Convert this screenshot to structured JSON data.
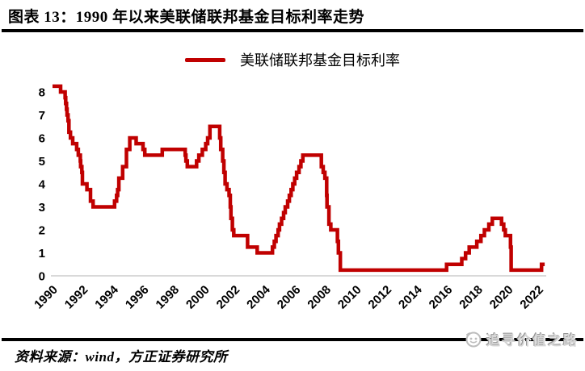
{
  "header": {
    "title": "图表 13：1990 年以来美联储联邦基金目标利率走势"
  },
  "legend": {
    "label": "美联储联邦基金目标利率"
  },
  "footer": {
    "source": "资料来源：wind，方正证券研究所",
    "watermark": "追寻价值之路"
  },
  "colors": {
    "series": "#C00000",
    "zero_line": "#D9D9D9",
    "rule": "#000000",
    "watermark_gray": "#BDBDBD"
  },
  "chart_data": {
    "type": "line",
    "title": "美联储联邦基金目标利率",
    "step": "after",
    "x_range": [
      1990,
      2023
    ],
    "ylim": [
      0,
      8.5
    ],
    "y_ticks": [
      0,
      1,
      2,
      3,
      4,
      5,
      6,
      7,
      8
    ],
    "x_tick_years": [
      1990,
      1992,
      1994,
      1996,
      1998,
      2000,
      2002,
      2004,
      2006,
      2008,
      2010,
      2012,
      2014,
      2016,
      2018,
      2020,
      2022
    ],
    "grid": "zero-baseline-only",
    "legend_position": "top-center",
    "series": [
      {
        "name": "美联储联邦基金目标利率",
        "color": "#C00000",
        "unit": "%",
        "x_end": 2022.42,
        "points": [
          [
            1990.0,
            8.25
          ],
          [
            1990.53,
            8.0
          ],
          [
            1990.83,
            7.75
          ],
          [
            1990.87,
            7.5
          ],
          [
            1990.92,
            7.25
          ],
          [
            1990.96,
            7.0
          ],
          [
            1991.02,
            6.75
          ],
          [
            1991.08,
            6.25
          ],
          [
            1991.18,
            6.0
          ],
          [
            1991.33,
            5.75
          ],
          [
            1991.59,
            5.5
          ],
          [
            1991.7,
            5.25
          ],
          [
            1991.83,
            5.0
          ],
          [
            1991.85,
            4.75
          ],
          [
            1991.93,
            4.5
          ],
          [
            1991.97,
            4.0
          ],
          [
            1992.27,
            3.75
          ],
          [
            1992.5,
            3.25
          ],
          [
            1992.67,
            3.0
          ],
          [
            1994.09,
            3.25
          ],
          [
            1994.22,
            3.5
          ],
          [
            1994.29,
            3.75
          ],
          [
            1994.37,
            4.25
          ],
          [
            1994.62,
            4.75
          ],
          [
            1994.87,
            5.5
          ],
          [
            1995.09,
            6.0
          ],
          [
            1995.51,
            5.75
          ],
          [
            1995.96,
            5.5
          ],
          [
            1996.08,
            5.25
          ],
          [
            1997.23,
            5.5
          ],
          [
            1998.74,
            5.25
          ],
          [
            1998.79,
            5.0
          ],
          [
            1998.88,
            4.75
          ],
          [
            1999.49,
            5.0
          ],
          [
            1999.64,
            5.25
          ],
          [
            1999.87,
            5.5
          ],
          [
            2000.09,
            5.75
          ],
          [
            2000.22,
            6.0
          ],
          [
            2000.37,
            6.5
          ],
          [
            2001.01,
            6.0
          ],
          [
            2001.08,
            5.5
          ],
          [
            2001.21,
            5.0
          ],
          [
            2001.29,
            4.5
          ],
          [
            2001.37,
            4.0
          ],
          [
            2001.49,
            3.75
          ],
          [
            2001.63,
            3.5
          ],
          [
            2001.71,
            3.0
          ],
          [
            2001.75,
            2.5
          ],
          [
            2001.85,
            2.0
          ],
          [
            2001.94,
            1.75
          ],
          [
            2002.85,
            1.25
          ],
          [
            2003.48,
            1.0
          ],
          [
            2004.49,
            1.25
          ],
          [
            2004.61,
            1.5
          ],
          [
            2004.72,
            1.75
          ],
          [
            2004.86,
            2.0
          ],
          [
            2004.95,
            2.25
          ],
          [
            2005.09,
            2.5
          ],
          [
            2005.22,
            2.75
          ],
          [
            2005.33,
            3.0
          ],
          [
            2005.49,
            3.25
          ],
          [
            2005.6,
            3.5
          ],
          [
            2005.72,
            3.75
          ],
          [
            2005.83,
            4.0
          ],
          [
            2005.95,
            4.25
          ],
          [
            2006.08,
            4.5
          ],
          [
            2006.24,
            4.75
          ],
          [
            2006.36,
            5.0
          ],
          [
            2006.49,
            5.25
          ],
          [
            2007.71,
            4.75
          ],
          [
            2007.83,
            4.5
          ],
          [
            2007.94,
            4.25
          ],
          [
            2008.06,
            3.5
          ],
          [
            2008.08,
            3.0
          ],
          [
            2008.21,
            2.25
          ],
          [
            2008.33,
            2.0
          ],
          [
            2008.77,
            1.5
          ],
          [
            2008.83,
            1.0
          ],
          [
            2008.96,
            0.25
          ],
          [
            2015.96,
            0.5
          ],
          [
            2016.96,
            0.75
          ],
          [
            2017.21,
            1.0
          ],
          [
            2017.45,
            1.25
          ],
          [
            2017.95,
            1.5
          ],
          [
            2018.22,
            1.75
          ],
          [
            2018.45,
            2.0
          ],
          [
            2018.74,
            2.25
          ],
          [
            2018.97,
            2.5
          ],
          [
            2019.58,
            2.25
          ],
          [
            2019.72,
            2.0
          ],
          [
            2019.83,
            1.75
          ],
          [
            2020.17,
            1.25
          ],
          [
            2020.21,
            0.25
          ],
          [
            2022.21,
            0.5
          ]
        ]
      }
    ]
  }
}
